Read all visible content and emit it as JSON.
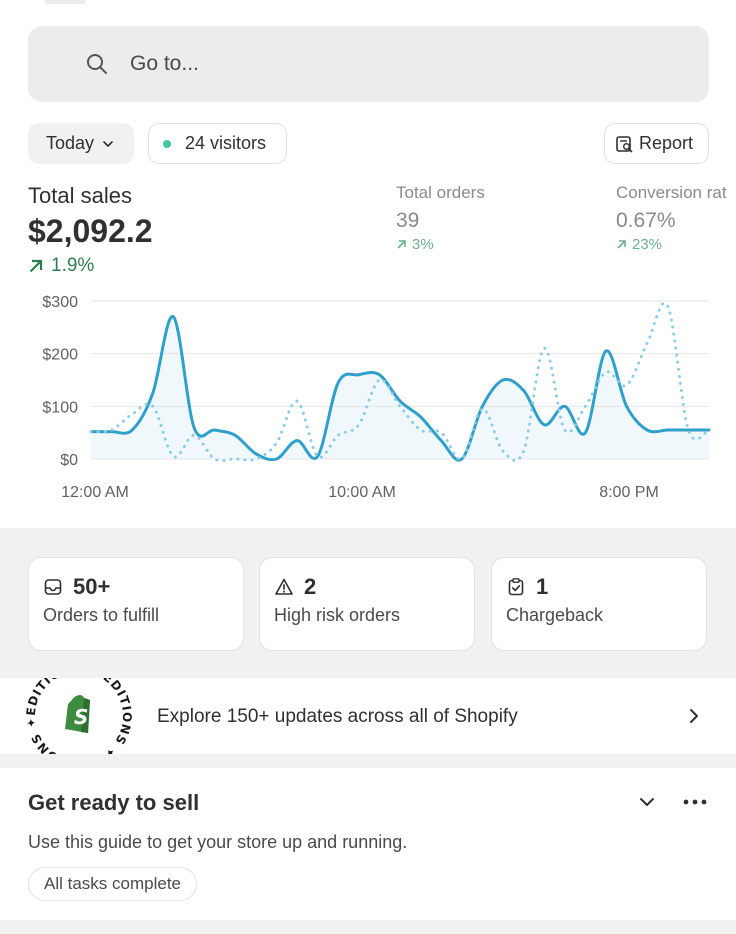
{
  "search": {
    "placeholder": "Go to...",
    "icon": "search-icon"
  },
  "filters": {
    "date_label": "Today",
    "visitors_label": "24 visitors",
    "report_label": "Report"
  },
  "metrics": {
    "total_sales": {
      "label": "Total sales",
      "value": "$2,092.2",
      "change": "1.9%"
    },
    "total_orders": {
      "label": "Total orders",
      "value": "39",
      "change": "3%"
    },
    "conversion": {
      "label": "Conversion rat",
      "value": "0.67%",
      "change": "23%"
    }
  },
  "chart_data": {
    "type": "line",
    "y_ticks": [
      "$300",
      "$200",
      "$100",
      "$0"
    ],
    "x_ticks": [
      "12:00 AM",
      "10:00 AM",
      "8:00 PM"
    ],
    "ylim": [
      0,
      300
    ],
    "grid": true,
    "series": [
      {
        "style": "solid",
        "color": "#2fa0c9",
        "values": [
          52,
          52,
          55,
          125,
          270,
          60,
          55,
          45,
          10,
          0,
          35,
          5,
          145,
          160,
          160,
          110,
          80,
          35,
          0,
          100,
          150,
          130,
          65,
          100,
          50,
          205,
          100,
          55,
          55,
          55,
          55
        ]
      },
      {
        "style": "dotted",
        "color": "#8ccde6",
        "values": [
          52,
          55,
          85,
          100,
          5,
          45,
          0,
          0,
          0,
          30,
          110,
          5,
          45,
          65,
          150,
          100,
          55,
          50,
          0,
          95,
          15,
          15,
          210,
          55,
          100,
          165,
          140,
          220,
          290,
          55,
          55
        ]
      }
    ]
  },
  "cards": [
    {
      "icon": "inbox-icon",
      "count": "50+",
      "label": "Orders to fulfill"
    },
    {
      "icon": "warning-icon",
      "count": "2",
      "label": "High risk orders"
    },
    {
      "icon": "clipboard-icon",
      "count": "1",
      "label": "Chargeback"
    }
  ],
  "editions": {
    "badge_text": "EDITIONS",
    "text": "Explore 150+ updates across all of Shopify"
  },
  "get_ready": {
    "title": "Get ready to sell",
    "subtitle": "Use this guide to get your store up and running.",
    "status": "All tasks complete"
  },
  "colors": {
    "accent": "#2fa0c9",
    "success": "#2e7d4f",
    "online_dot": "#3ec99a",
    "shopify_green": "#3d8c40"
  }
}
